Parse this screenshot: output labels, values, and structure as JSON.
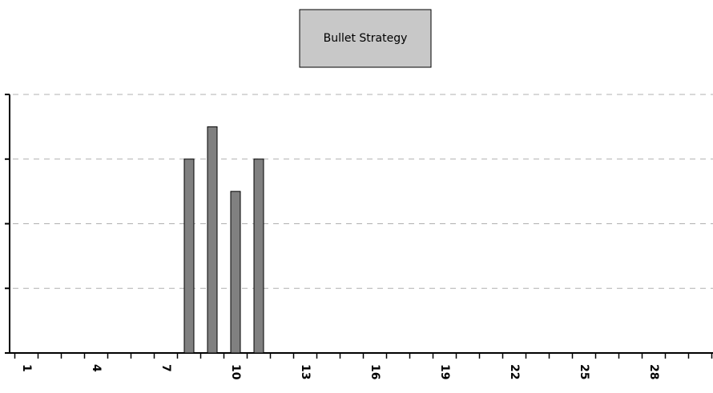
{
  "chart_data": {
    "type": "bar",
    "title": "Bullet Strategy",
    "categories": [
      "1",
      null,
      null,
      "4",
      null,
      null,
      "7",
      null,
      null,
      "10",
      null,
      null,
      "13",
      null,
      null,
      "16",
      null,
      null,
      "19",
      null,
      null,
      "22",
      null,
      null,
      "25",
      null,
      null,
      "28",
      null,
      null
    ],
    "values": [
      0,
      0,
      0,
      0,
      0,
      0,
      0,
      3,
      3.5,
      2.5,
      3,
      0,
      0,
      0,
      0,
      0,
      0,
      0,
      0,
      0,
      0,
      0,
      0,
      0,
      0,
      0,
      0,
      0,
      0,
      0
    ],
    "color": "#808080",
    "ylim": [
      0,
      4
    ],
    "yticks": [
      0,
      1,
      2,
      3,
      4
    ],
    "grid": true
  }
}
